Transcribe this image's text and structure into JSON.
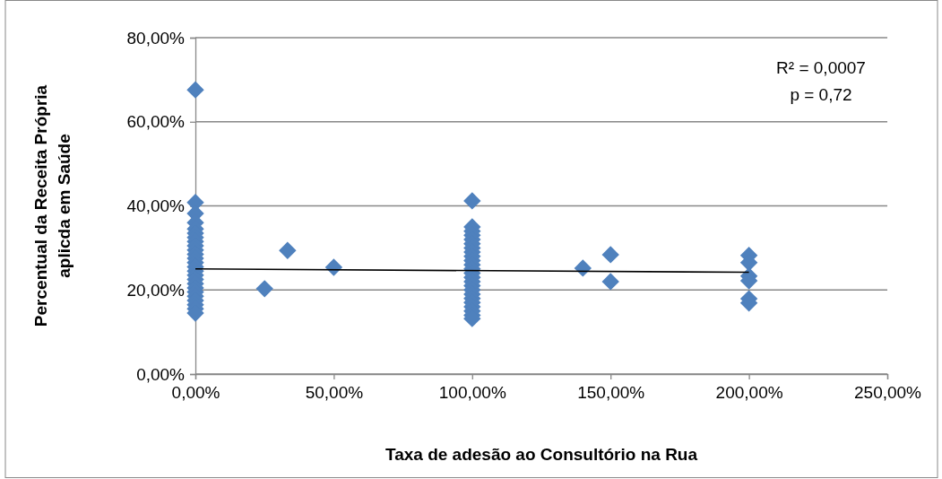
{
  "chart_data": {
    "type": "scatter",
    "xlabel": "Taxa de adesão ao Consultório na Rua",
    "ylabel": "Percentual da Receita Própria aplicda em Saúde",
    "annotations": [
      "R² = 0,0007",
      "p = 0,72"
    ],
    "xlim": [
      0,
      250
    ],
    "xticks": [
      {
        "value": 0,
        "label": "0,00%"
      },
      {
        "value": 50,
        "label": "50,00%"
      },
      {
        "value": 100,
        "label": "100,00%"
      },
      {
        "value": 150,
        "label": "150,00%"
      },
      {
        "value": 200,
        "label": "200,00%"
      },
      {
        "value": 250,
        "label": "250,00%"
      }
    ],
    "ylim": [
      0,
      80
    ],
    "yticks": [
      {
        "value": 0,
        "label": "0,00%"
      },
      {
        "value": 20,
        "label": "20,00%"
      },
      {
        "value": 40,
        "label": "40,00%"
      },
      {
        "value": 60,
        "label": "60,00%"
      },
      {
        "value": 80,
        "label": "80,00%"
      }
    ],
    "grid": "y",
    "marker": "diamond",
    "series": [
      {
        "color": "#4f81bd",
        "x": [
          0,
          0,
          0,
          0,
          0,
          0,
          0,
          0,
          0,
          0,
          0,
          0,
          0,
          0,
          0,
          0,
          0,
          0,
          0,
          0,
          0,
          0,
          0,
          0,
          0,
          100,
          100,
          100,
          100,
          100,
          100,
          100,
          100,
          100,
          100,
          100,
          100,
          100,
          100,
          100,
          100,
          100,
          100,
          100,
          100,
          100,
          100,
          100,
          100,
          25,
          33.3,
          50,
          140,
          150,
          150,
          200,
          200,
          200,
          200,
          200,
          200
        ],
        "values": [
          67.6,
          40.8,
          38.2,
          36,
          34.5,
          33.5,
          32.5,
          31.5,
          30.5,
          29.5,
          28.5,
          27.5,
          26.5,
          25.5,
          24.5,
          23.5,
          22.5,
          21.5,
          20.5,
          19.5,
          18.5,
          17.5,
          16.5,
          15.5,
          14.5,
          41.2,
          35,
          34,
          33,
          32,
          31,
          30,
          29,
          28,
          27,
          26,
          25,
          24,
          23,
          22,
          21,
          20,
          19,
          18,
          17,
          16,
          15,
          14,
          13.2,
          20.3,
          29.4,
          25.4,
          25.2,
          28.4,
          22,
          28.2,
          26.5,
          23.3,
          22.2,
          17.9,
          16.9
        ]
      },
      {
        "type": "line",
        "color": "#000000",
        "marker": "none",
        "x": [
          0,
          200
        ],
        "values": [
          25,
          24.2
        ]
      }
    ]
  }
}
